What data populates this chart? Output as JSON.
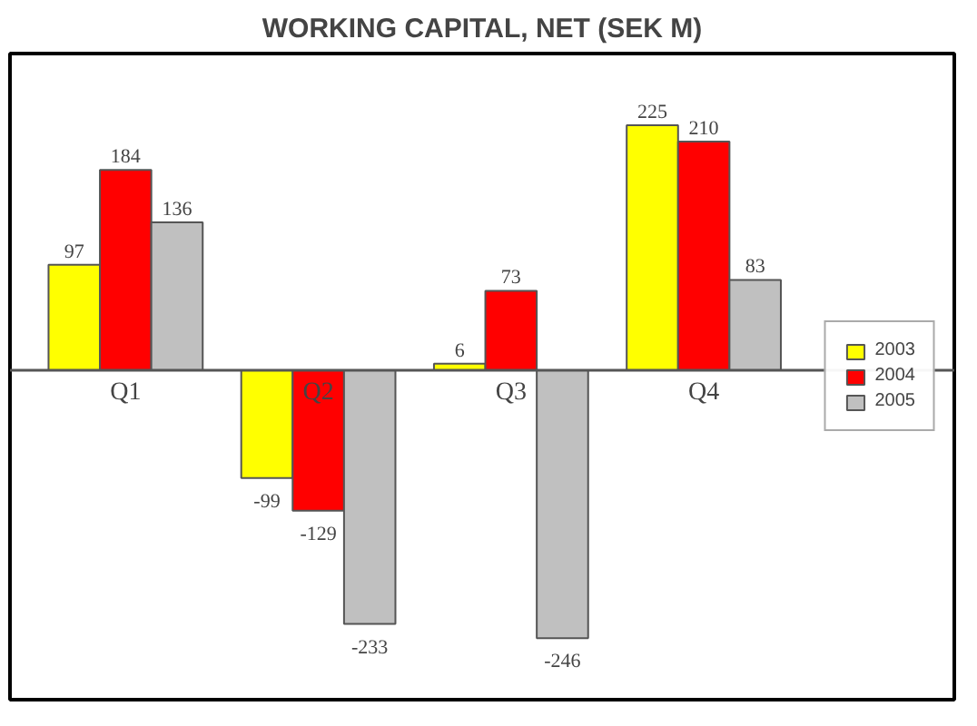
{
  "chart_data": {
    "type": "bar",
    "title": "WORKING CAPITAL, NET (SEK M)",
    "categories": [
      "Q1",
      "Q2",
      "Q3",
      "Q4"
    ],
    "series": [
      {
        "name": "2003",
        "color": "#ffff00",
        "values": [
          97,
          -99,
          6,
          225
        ]
      },
      {
        "name": "2004",
        "color": "#ff0000",
        "values": [
          184,
          -129,
          73,
          210
        ]
      },
      {
        "name": "2005",
        "color": "#c0c0c0",
        "values": [
          136,
          -233,
          -246,
          83
        ]
      }
    ],
    "data_labels": true,
    "legend": "right"
  }
}
